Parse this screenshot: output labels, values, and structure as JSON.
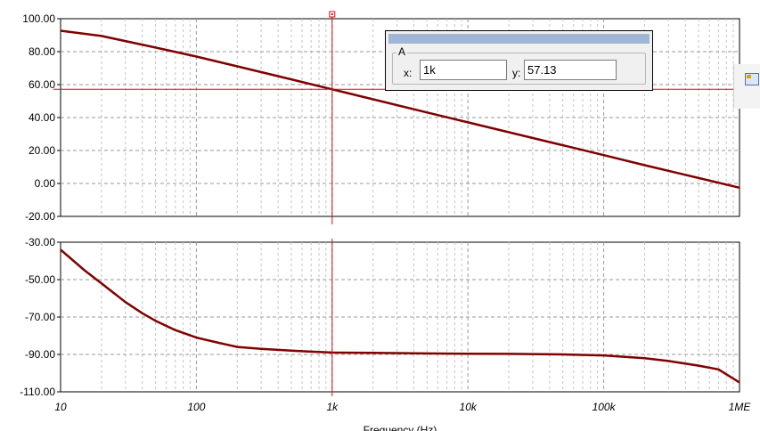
{
  "chart_data": [
    {
      "type": "line",
      "name": "top",
      "ylim": [
        -20,
        100
      ],
      "yticks": [
        -20,
        0,
        20,
        40,
        60,
        80,
        100
      ],
      "ytick_labels": [
        "-20.00",
        "0.00",
        "20.00",
        "40.00",
        "60.00",
        "80.00",
        "100.00"
      ],
      "ylabel": "",
      "x_scale": "log",
      "grid": true,
      "series": [
        {
          "color": "#800000",
          "x": [
            10,
            20,
            50,
            100,
            200,
            500,
            1000,
            2000,
            5000,
            10000,
            20000,
            50000,
            100000,
            200000,
            500000,
            1000000
          ],
          "y": [
            92.7,
            89.5,
            82.5,
            77.0,
            71.1,
            63.2,
            57.13,
            51.1,
            43.1,
            37.1,
            31.1,
            23.2,
            17.2,
            11.1,
            3.3,
            -2.6
          ]
        }
      ],
      "cursor": {
        "x": 1000,
        "y": 57.13
      }
    },
    {
      "type": "line",
      "name": "bottom",
      "ylim": [
        -110,
        -30
      ],
      "yticks": [
        -110,
        -90,
        -70,
        -50,
        -30
      ],
      "ytick_labels": [
        "-110.00",
        "-90.00",
        "-70.00",
        "-50.00",
        "-30.00"
      ],
      "ylabel": "",
      "x_scale": "log",
      "xlim": [
        10,
        1000000
      ],
      "xticks": [
        10,
        100,
        1000,
        10000,
        100000,
        1000000
      ],
      "xtick_labels": [
        "10",
        "100",
        "1k",
        "10k",
        "100k",
        "1ME"
      ],
      "xlabel": "Frequency (Hz)",
      "grid": true,
      "series": [
        {
          "color": "#800000",
          "x": [
            10,
            15,
            20,
            30,
            40,
            50,
            70,
            100,
            150,
            200,
            300,
            500,
            700,
            1000,
            2000,
            5000,
            10000,
            20000,
            50000,
            100000,
            200000,
            300000,
            500000,
            700000,
            1000000
          ],
          "y": [
            -34,
            -45,
            -52,
            -62,
            -68,
            -72,
            -77,
            -81,
            -84,
            -86,
            -87,
            -88,
            -88.5,
            -89,
            -89.2,
            -89.5,
            -89.6,
            -89.7,
            -90,
            -90.5,
            -92,
            -93.5,
            -96,
            -98,
            -105
          ]
        }
      ],
      "cursor": {
        "x": 1000
      }
    }
  ],
  "cursor_window": {
    "group_label": "A",
    "x_label": "x:",
    "x_value": "1k",
    "y_label": "y:",
    "y_value": "57.13"
  }
}
